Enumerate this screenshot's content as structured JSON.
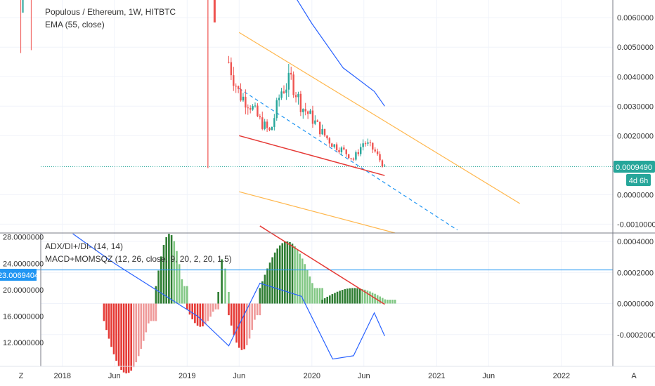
{
  "legend": {
    "symbol": "Populous / Ethereum, 1W, HITBTC",
    "ema": "EMA (55, close)",
    "adx": "ADX/DI+/DI- (14, 14)",
    "macd": "MACD+MOMSQZ (12, 26, close, 9, 20, 2, 20, 1.5)"
  },
  "badges": {
    "last_price": "0.0009490",
    "countdown": "4d 6h",
    "adx_marker": "23.0069404"
  },
  "corner_buttons": {
    "left": "Z",
    "right": "A"
  },
  "colors": {
    "up": "#26a69a",
    "down": "#ef5350",
    "ema": "#2962ff",
    "channel": "#ffb74d",
    "trend": "#e53935",
    "hist_up": "#4caf50",
    "hist_down": "#e53935",
    "badge_teal": "#26a69a",
    "badge_blue": "#2196f3"
  },
  "chart_data": [
    {
      "type": "candlestick",
      "title": "Populous / Ethereum, 1W, HITBTC",
      "x_axis": {
        "labels": [
          "2018",
          "Jun",
          "2019",
          "Jun",
          "2020",
          "Jun",
          "2021",
          "Jun",
          "2022",
          "Jun"
        ],
        "range": [
          "2017-07",
          "2022-09"
        ]
      },
      "y_axis": {
        "tick_labels": [
          "0.0060000",
          "0.0050000",
          "0.0040000",
          "0.0030000",
          "0.0020000",
          "0.0000000",
          "-0.0010000"
        ],
        "range": [
          -0.0013,
          0.0066
        ]
      },
      "last_price": 0.000949,
      "series_close": [
        [
          "2019-05",
          0.0045
        ],
        [
          "2019-06",
          0.0034
        ],
        [
          "2019-07",
          0.0031
        ],
        [
          "2019-08",
          0.0025
        ],
        [
          "2019-09",
          0.0021
        ],
        [
          "2019-10",
          0.0035
        ],
        [
          "2019-11",
          0.0039
        ],
        [
          "2019-12",
          0.003
        ],
        [
          "2020-01",
          0.0026
        ],
        [
          "2020-02",
          0.0021
        ],
        [
          "2020-03",
          0.0017
        ],
        [
          "2020-04",
          0.0015
        ],
        [
          "2020-05",
          0.0012
        ],
        [
          "2020-06",
          0.0018
        ],
        [
          "2020-07",
          0.0015
        ],
        [
          "2020-08",
          0.0009
        ]
      ],
      "overlays": {
        "ema": {
          "label": "EMA (55, close)",
          "points": [
            [
              "2019-10",
              0.0075
            ],
            [
              "2020-01",
              0.0058
            ],
            [
              "2020-04",
              0.0043
            ],
            [
              "2020-07",
              0.0035
            ],
            [
              "2020-08",
              0.003
            ]
          ]
        },
        "channel_upper": [
          [
            "2019-06",
            0.0055
          ],
          [
            "2021-09",
            -0.0003
          ]
        ],
        "channel_mid": [
          [
            "2019-06",
            0.0036
          ],
          [
            "2021-03",
            -0.0012
          ]
        ],
        "channel_lower": [
          [
            "2019-06",
            0.0001
          ],
          [
            "2020-09",
            -0.0013
          ]
        ],
        "support_line": [
          [
            "2019-06",
            0.002
          ],
          [
            "2020-08",
            0.00065
          ]
        ]
      }
    },
    {
      "type": "bar",
      "title": "MACD+MOMSQZ (12, 26, close, 9, 20, 2, 20, 1.5)",
      "y_axis_right": {
        "tick_labels": [
          "0.0004000",
          "0.0002000",
          "0.0000000",
          "-0.0002000"
        ],
        "range": [
          -0.0004,
          0.00045
        ]
      },
      "y_axis_left": {
        "tick_labels": [
          "28.0000000",
          "24.0000000",
          "20.0000000",
          "16.0000000",
          "12.0000000"
        ],
        "range": [
          8.5,
          28.5
        ]
      },
      "histogram_segments": [
        {
          "period": "2018-05..2018-10",
          "sign": "negative",
          "peak": -0.00045
        },
        {
          "period": "2018-10..2019-01",
          "sign": "positive",
          "peak": 0.00045
        },
        {
          "period": "2019-01..2019-04",
          "sign": "negative",
          "peak": -0.00015
        },
        {
          "period": "2019-04..2019-05",
          "sign": "positive",
          "peak": 0.0003
        },
        {
          "period": "2019-05..2019-08",
          "sign": "negative",
          "peak": -0.0003
        },
        {
          "period": "2019-08..2020-02",
          "sign": "positive",
          "peak": 0.0004
        },
        {
          "period": "2020-02..2020-09",
          "sign": "positive",
          "peak": 0.0001
        }
      ],
      "adx_line": {
        "label": "ADX/DI+/DI- (14, 14)",
        "marker": 23.0069404,
        "points": [
          [
            "2018-02",
            28.5
          ],
          [
            "2018-06",
            24
          ],
          [
            "2018-11",
            19
          ],
          [
            "2019-02",
            16
          ],
          [
            "2019-05",
            11.5
          ],
          [
            "2019-08",
            21
          ],
          [
            "2019-12",
            19
          ],
          [
            "2020-03",
            9.5
          ],
          [
            "2020-05",
            10
          ],
          [
            "2020-07",
            16.5
          ],
          [
            "2020-08",
            13
          ]
        ]
      },
      "trend_line": [
        [
          "2019-08",
          0.0005
        ],
        [
          "2020-08",
          -5e-06
        ]
      ]
    }
  ]
}
